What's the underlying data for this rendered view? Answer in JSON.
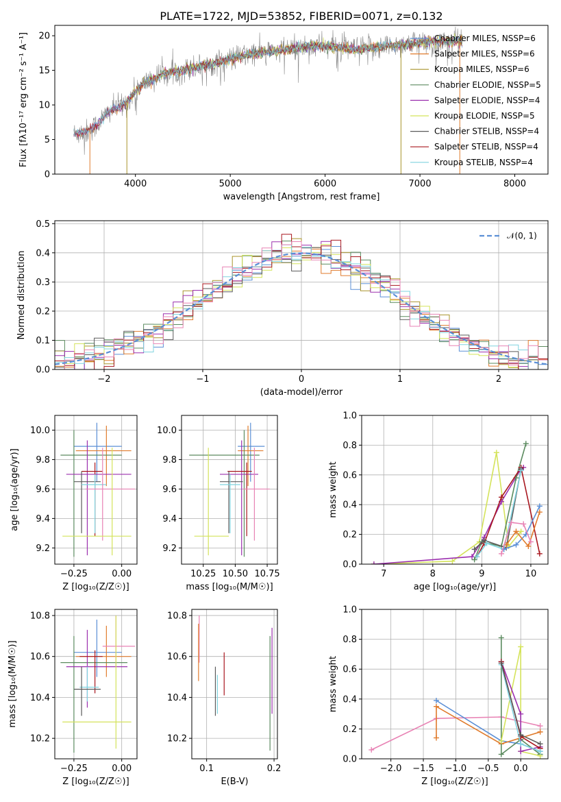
{
  "colors": {
    "chab_miles": "#5b8fd6",
    "salp_miles": "#e07b2c",
    "krou_miles": "#a8932a",
    "chab_elodie": "#5a8a5e",
    "salp_elodie": "#9b2fae",
    "krou_elodie": "#d4e35a",
    "chab_stelib": "#5a5a5a",
    "salp_stelib": "#a8161e",
    "krou_stelib": "#7fd3df",
    "pink": "#e882b4",
    "gray": "#888888"
  },
  "chart_data": [
    {
      "id": "spectrum",
      "type": "line",
      "title": "PLATE=1722, MJD=53852, FIBERID=0071, z=0.132",
      "xlabel": "wavelength [Angstrom, rest frame]",
      "ylabel": "Flux [fλ10⁻¹⁷ erg cm⁻² s⁻¹ A⁻¹]",
      "xlim": [
        3150,
        8350
      ],
      "ylim": [
        0,
        21.5
      ],
      "xticks": [
        "4000",
        "5000",
        "6000",
        "7000",
        "8000"
      ],
      "yticks": [
        "0",
        "5",
        "10",
        "15",
        "20"
      ],
      "legend_position": "right",
      "legend": [
        "Chabrier MILES, NSSP=6",
        "Salpeter MILES, NSSP=6",
        "Kroupa MILES, NSSP=6",
        "Chabrier ELODIE, NSSP=5",
        "Salpeter ELODIE, NSSP=4",
        "Kroupa ELODIE, NSSP=5",
        "Chabrier STELIB, NSSP=4",
        "Salpeter STELIB, NSSP=4",
        "Kroupa STELIB, NSSP=4"
      ],
      "envelope": {
        "x": [
          3350,
          3500,
          3600,
          3700,
          3800,
          3900,
          4000,
          4100,
          4200,
          4300,
          4500,
          4700,
          4900,
          5100,
          5300,
          5500,
          5700,
          5900,
          6100,
          6300,
          6500,
          6700,
          6900,
          7100,
          7300,
          7450
        ],
        "y": [
          5.8,
          6.2,
          7.2,
          8.8,
          9.6,
          10.2,
          12.0,
          13.2,
          13.8,
          14.5,
          15.0,
          15.6,
          16.2,
          17.0,
          17.5,
          17.8,
          18.2,
          18.6,
          18.4,
          18.0,
          18.2,
          18.6,
          18.9,
          19.1,
          19.2,
          19.2
        ]
      },
      "cutoffs": [
        {
          "x": 3520,
          "color": "salp_miles"
        },
        {
          "x": 3910,
          "color": "krou_miles"
        },
        {
          "x": 6800,
          "color": "krou_miles"
        },
        {
          "x": 7420,
          "color": "salp_miles"
        }
      ]
    },
    {
      "id": "residual",
      "type": "line",
      "xlabel": "(data-model)/error",
      "ylabel": "Normed distribution",
      "xlim": [
        -2.5,
        2.5
      ],
      "ylim": [
        0,
        0.51
      ],
      "xticks": [
        "−2",
        "−1",
        "0",
        "1",
        "2"
      ],
      "xtickvals": [
        -2,
        -1,
        0,
        1,
        2
      ],
      "yticks": [
        "0.0",
        "0.1",
        "0.2",
        "0.3",
        "0.4",
        "0.5"
      ],
      "ytickvals": [
        0,
        0.1,
        0.2,
        0.3,
        0.4,
        0.5
      ],
      "legend": [
        "𝒩(0, 1)"
      ],
      "bin_width": 0.1
    },
    {
      "id": "age_Z",
      "type": "scatter",
      "xlabel": "Z [log₁₀(Z/Z☉)]",
      "ylabel": "age  [log₁₀(age/yr)]",
      "xlim": [
        -0.35,
        0.08
      ],
      "ylim": [
        9.09,
        10.1
      ],
      "xticks": [
        "−0.25",
        "0.00"
      ],
      "xtickvals": [
        -0.25,
        0.0
      ],
      "yticks": [
        "9.2",
        "9.4",
        "9.6",
        "9.8",
        "10.0"
      ],
      "ytickvals": [
        9.2,
        9.4,
        9.6,
        9.8,
        10.0
      ],
      "points": [
        {
          "c": "chab_miles",
          "x": -0.13,
          "xe": [
            -0.25,
            -0.0
          ],
          "y": 9.89,
          "ye": [
            9.65,
            10.05
          ]
        },
        {
          "c": "salp_miles",
          "x": -0.08,
          "xe": [
            -0.24,
            0.05
          ],
          "y": 9.86,
          "ye": [
            9.62,
            10.03
          ]
        },
        {
          "c": "chab_elodie",
          "x": -0.25,
          "xe": [
            -0.32,
            -0.0
          ],
          "y": 9.83,
          "ye": [
            9.14,
            10.0
          ]
        },
        {
          "c": "salp_elodie",
          "x": -0.18,
          "xe": [
            -0.29,
            0.05
          ],
          "y": 9.7,
          "ye": [
            9.15,
            9.93
          ]
        },
        {
          "c": "salp_stelib",
          "x": -0.14,
          "xe": [
            -0.21,
            -0.1
          ],
          "y": 9.72,
          "ye": [
            9.28,
            9.78
          ]
        },
        {
          "c": "chab_stelib",
          "x": -0.21,
          "xe": [
            -0.25,
            -0.11
          ],
          "y": 9.65,
          "ye": [
            9.3,
            9.72
          ]
        },
        {
          "c": "krou_stelib",
          "x": -0.14,
          "xe": [
            -0.21,
            -0.08
          ],
          "y": 9.63,
          "ye": [
            9.3,
            9.7
          ]
        },
        {
          "c": "pink",
          "x": -0.1,
          "xe": [
            -0.19,
            0.07
          ],
          "y": 9.6,
          "ye": [
            9.25,
            9.88
          ]
        },
        {
          "c": "krou_elodie",
          "x": -0.05,
          "xe": [
            -0.31,
            0.05
          ],
          "y": 9.28,
          "ye": [
            9.15,
            9.88
          ]
        }
      ]
    },
    {
      "id": "age_mass",
      "type": "scatter",
      "xlabel": "mass [log₁₀(M/M☉)]",
      "ylabel": "",
      "xlim": [
        10.08,
        10.83
      ],
      "ylim": [
        9.09,
        10.1
      ],
      "xticks": [
        "10.25",
        "10.50",
        "10.75"
      ],
      "xtickvals": [
        10.25,
        10.5,
        10.75
      ],
      "yticks": [
        "9.2",
        "9.4",
        "9.6",
        "9.8",
        "10.0"
      ],
      "ytickvals": [
        9.2,
        9.4,
        9.6,
        9.8,
        10.0
      ],
      "points": [
        {
          "c": "chab_miles",
          "x": 10.62,
          "xe": [
            10.52,
            10.73
          ],
          "y": 9.89,
          "ye": [
            9.65,
            10.05
          ]
        },
        {
          "c": "salp_miles",
          "x": 10.6,
          "xe": [
            10.52,
            10.72
          ],
          "y": 9.86,
          "ye": [
            9.62,
            10.03
          ]
        },
        {
          "c": "chab_elodie",
          "x": 10.57,
          "xe": [
            10.14,
            10.69
          ],
          "y": 9.83,
          "ye": [
            9.14,
            10.0
          ]
        },
        {
          "c": "salp_elodie",
          "x": 10.55,
          "xe": [
            10.38,
            10.68
          ],
          "y": 9.7,
          "ye": [
            9.15,
            9.93
          ]
        },
        {
          "c": "salp_stelib",
          "x": 10.59,
          "xe": [
            10.44,
            10.63
          ],
          "y": 9.72,
          "ye": [
            9.28,
            9.78
          ]
        },
        {
          "c": "chab_stelib",
          "x": 10.45,
          "xe": [
            10.38,
            10.56
          ],
          "y": 9.65,
          "ye": [
            9.3,
            9.72
          ]
        },
        {
          "c": "krou_stelib",
          "x": 10.46,
          "xe": [
            10.38,
            10.54
          ],
          "y": 9.63,
          "ye": [
            9.3,
            9.7
          ]
        },
        {
          "c": "pink",
          "x": 10.65,
          "xe": [
            10.56,
            10.77
          ],
          "y": 9.6,
          "ye": [
            9.25,
            9.88
          ]
        },
        {
          "c": "krou_elodie",
          "x": 10.29,
          "xe": [
            10.18,
            10.45
          ],
          "y": 9.28,
          "ye": [
            9.15,
            9.88
          ]
        }
      ]
    },
    {
      "id": "weight_age",
      "type": "line",
      "xlabel": "age  [log₁₀(age/yr)]",
      "ylabel": "mass weight",
      "xlim": [
        6.55,
        10.35
      ],
      "ylim": [
        0,
        1.0
      ],
      "xticks": [
        "7",
        "8",
        "9",
        "10"
      ],
      "xtickvals": [
        7,
        8,
        9,
        10
      ],
      "yticks": [
        "0.0",
        "0.2",
        "0.4",
        "0.6",
        "0.8",
        "1.0"
      ],
      "ytickvals": [
        0,
        0.2,
        0.4,
        0.6,
        0.8,
        1.0
      ],
      "series": [
        {
          "c": "krou_elodie",
          "x": [
            6.8,
            8.4,
            8.95,
            9.3,
            9.55,
            9.8
          ],
          "y": [
            0.0,
            0.02,
            0.15,
            0.75,
            0.12,
            0.22
          ]
        },
        {
          "c": "salp_elodie",
          "x": [
            6.8,
            8.8,
            9.05,
            9.4,
            9.8,
            9.85
          ],
          "y": [
            0.0,
            0.05,
            0.18,
            0.42,
            0.64,
            0.65
          ]
        },
        {
          "c": "chab_elodie",
          "x": [
            8.85,
            9.0,
            9.4,
            9.7,
            9.9
          ],
          "y": [
            0.03,
            0.15,
            0.12,
            0.58,
            0.81
          ]
        },
        {
          "c": "salp_stelib",
          "x": [
            8.9,
            9.05,
            9.4,
            9.8,
            10.18
          ],
          "y": [
            0.05,
            0.14,
            0.45,
            0.65,
            0.07
          ]
        },
        {
          "c": "chab_stelib",
          "x": [
            8.85,
            9.05,
            9.5,
            9.8
          ],
          "y": [
            0.1,
            0.16,
            0.11,
            0.64
          ]
        },
        {
          "c": "krou_stelib",
          "x": [
            8.9,
            9.1,
            9.45,
            9.8
          ],
          "y": [
            0.05,
            0.14,
            0.1,
            0.63
          ]
        },
        {
          "c": "chab_miles",
          "x": [
            9.45,
            9.7,
            9.9,
            10.18
          ],
          "y": [
            0.1,
            0.13,
            0.2,
            0.39
          ]
        },
        {
          "c": "salp_miles",
          "x": [
            9.5,
            9.7,
            9.95,
            10.18
          ],
          "y": [
            0.13,
            0.22,
            0.12,
            0.35
          ]
        },
        {
          "c": "pink",
          "x": [
            9.4,
            9.6,
            9.85,
            10.0
          ],
          "y": [
            0.07,
            0.28,
            0.27,
            0.15
          ]
        }
      ]
    },
    {
      "id": "mass_Z",
      "type": "scatter",
      "xlabel": "Z [log₁₀(Z/Z☉)]",
      "ylabel": "mass [log₁₀(M/M☉)]",
      "xlim": [
        -0.35,
        0.08
      ],
      "ylim": [
        10.1,
        10.83
      ],
      "xticks": [
        "−0.25",
        "0.00"
      ],
      "xtickvals": [
        -0.25,
        0.0
      ],
      "yticks": [
        "10.2",
        "10.4",
        "10.6",
        "10.8"
      ],
      "ytickvals": [
        10.2,
        10.4,
        10.6,
        10.8
      ],
      "points": [
        {
          "c": "chab_miles",
          "x": -0.13,
          "xe": [
            -0.25,
            0.0
          ],
          "y": 10.62,
          "ye": [
            10.5,
            10.78
          ]
        },
        {
          "c": "salp_miles",
          "x": -0.08,
          "xe": [
            -0.24,
            0.05
          ],
          "y": 10.6,
          "ye": [
            10.5,
            10.75
          ]
        },
        {
          "c": "pink",
          "x": -0.03,
          "xe": [
            -0.1,
            0.07
          ],
          "y": 10.65,
          "ye": [
            10.55,
            10.8
          ]
        },
        {
          "c": "chab_elodie",
          "x": -0.25,
          "xe": [
            -0.32,
            0.03
          ],
          "y": 10.57,
          "ye": [
            10.13,
            10.7
          ]
        },
        {
          "c": "salp_elodie",
          "x": -0.18,
          "xe": [
            -0.29,
            0.03
          ],
          "y": 10.55,
          "ye": [
            10.35,
            10.73
          ]
        },
        {
          "c": "salp_stelib",
          "x": -0.14,
          "xe": [
            -0.22,
            -0.1
          ],
          "y": 10.6,
          "ye": [
            10.42,
            10.63
          ]
        },
        {
          "c": "krou_stelib",
          "x": -0.18,
          "xe": [
            -0.22,
            -0.12
          ],
          "y": 10.45,
          "ye": [
            10.38,
            10.55
          ]
        },
        {
          "c": "chab_stelib",
          "x": -0.21,
          "xe": [
            -0.25,
            -0.11
          ],
          "y": 10.44,
          "ye": [
            10.31,
            10.55
          ]
        },
        {
          "c": "krou_elodie",
          "x": -0.03,
          "xe": [
            -0.31,
            0.05
          ],
          "y": 10.28,
          "ye": [
            10.15,
            10.8
          ]
        }
      ]
    },
    {
      "id": "mass_ebv",
      "type": "scatter",
      "xlabel": "E(B-V)",
      "ylabel": "",
      "xlim": [
        0.078,
        0.205
      ],
      "ylim": [
        10.1,
        10.83
      ],
      "xticks": [
        "0.1",
        "0.2"
      ],
      "xtickvals": [
        0.1,
        0.2
      ],
      "yticks": [
        "10.2",
        "10.4",
        "10.6",
        "10.8"
      ],
      "ytickvals": [
        10.2,
        10.4,
        10.6,
        10.8
      ],
      "points": [
        {
          "c": "pink",
          "x": 0.089,
          "y": 10.7,
          "ye": [
            10.57,
            10.8
          ]
        },
        {
          "c": "salp_miles",
          "x": 0.088,
          "y": 10.62,
          "ye": [
            10.48,
            10.76
          ]
        },
        {
          "c": "chab_stelib",
          "x": 0.113,
          "y": 10.44,
          "ye": [
            10.31,
            10.55
          ]
        },
        {
          "c": "krou_stelib",
          "x": 0.116,
          "y": 10.42,
          "ye": [
            10.32,
            10.51
          ]
        },
        {
          "c": "salp_stelib",
          "x": 0.126,
          "y": 10.52,
          "ye": [
            10.41,
            10.62
          ]
        },
        {
          "c": "chab_elodie",
          "x": 0.194,
          "y": 10.45,
          "ye": [
            10.14,
            10.7
          ]
        },
        {
          "c": "salp_elodie",
          "x": 0.197,
          "y": 10.55,
          "ye": [
            10.32,
            10.74
          ]
        }
      ]
    },
    {
      "id": "weight_Z",
      "type": "line",
      "xlabel": "Z [log₁₀(Z/Z☉)]",
      "ylabel": "mass weight",
      "xlim": [
        -2.45,
        0.42
      ],
      "ylim": [
        0,
        1.0
      ],
      "xticks": [
        "−2.0",
        "−1.5",
        "−1.0",
        "−0.5",
        "0.0"
      ],
      "xtickvals": [
        -2.0,
        -1.5,
        -1.0,
        -0.5,
        0.0
      ],
      "yticks": [
        "0.0",
        "0.2",
        "0.4",
        "0.6",
        "0.8",
        "1.0"
      ],
      "ytickvals": [
        0,
        0.2,
        0.4,
        0.6,
        0.8,
        1.0
      ],
      "series": [
        {
          "c": "pink",
          "x": [
            -2.3,
            -1.3,
            -0.3,
            0.3
          ],
          "y": [
            0.06,
            0.27,
            0.28,
            0.22
          ]
        },
        {
          "c": "chab_miles",
          "x": [
            -1.3,
            -0.3,
            0.0,
            0.3
          ],
          "y": [
            0.39,
            0.12,
            0.1,
            0.05
          ]
        },
        {
          "c": "salp_miles",
          "x": [
            -1.3,
            -1.3,
            -0.3,
            0.3
          ],
          "y": [
            0.14,
            0.35,
            0.1,
            0.18
          ]
        },
        {
          "c": "chab_elodie",
          "x": [
            -0.3,
            -0.3,
            0.0,
            0.3
          ],
          "y": [
            0.81,
            0.03,
            0.13,
            0.03
          ]
        },
        {
          "c": "krou_elodie",
          "x": [
            -0.3,
            0.0,
            0.0,
            0.3
          ],
          "y": [
            0.12,
            0.75,
            0.05,
            0.02
          ]
        },
        {
          "c": "salp_elodie",
          "x": [
            -0.3,
            0.0,
            0.0,
            0.3
          ],
          "y": [
            0.65,
            0.3,
            0.05,
            0.08
          ]
        },
        {
          "c": "salp_stelib",
          "x": [
            -0.3,
            0.0,
            0.3
          ],
          "y": [
            0.65,
            0.15,
            0.07
          ]
        },
        {
          "c": "krou_stelib",
          "x": [
            -0.3,
            0.0,
            0.3
          ],
          "y": [
            0.63,
            0.1,
            0.05
          ]
        },
        {
          "c": "chab_stelib",
          "x": [
            -0.3,
            0.0,
            0.3
          ],
          "y": [
            0.64,
            0.16,
            0.1
          ]
        }
      ]
    }
  ]
}
